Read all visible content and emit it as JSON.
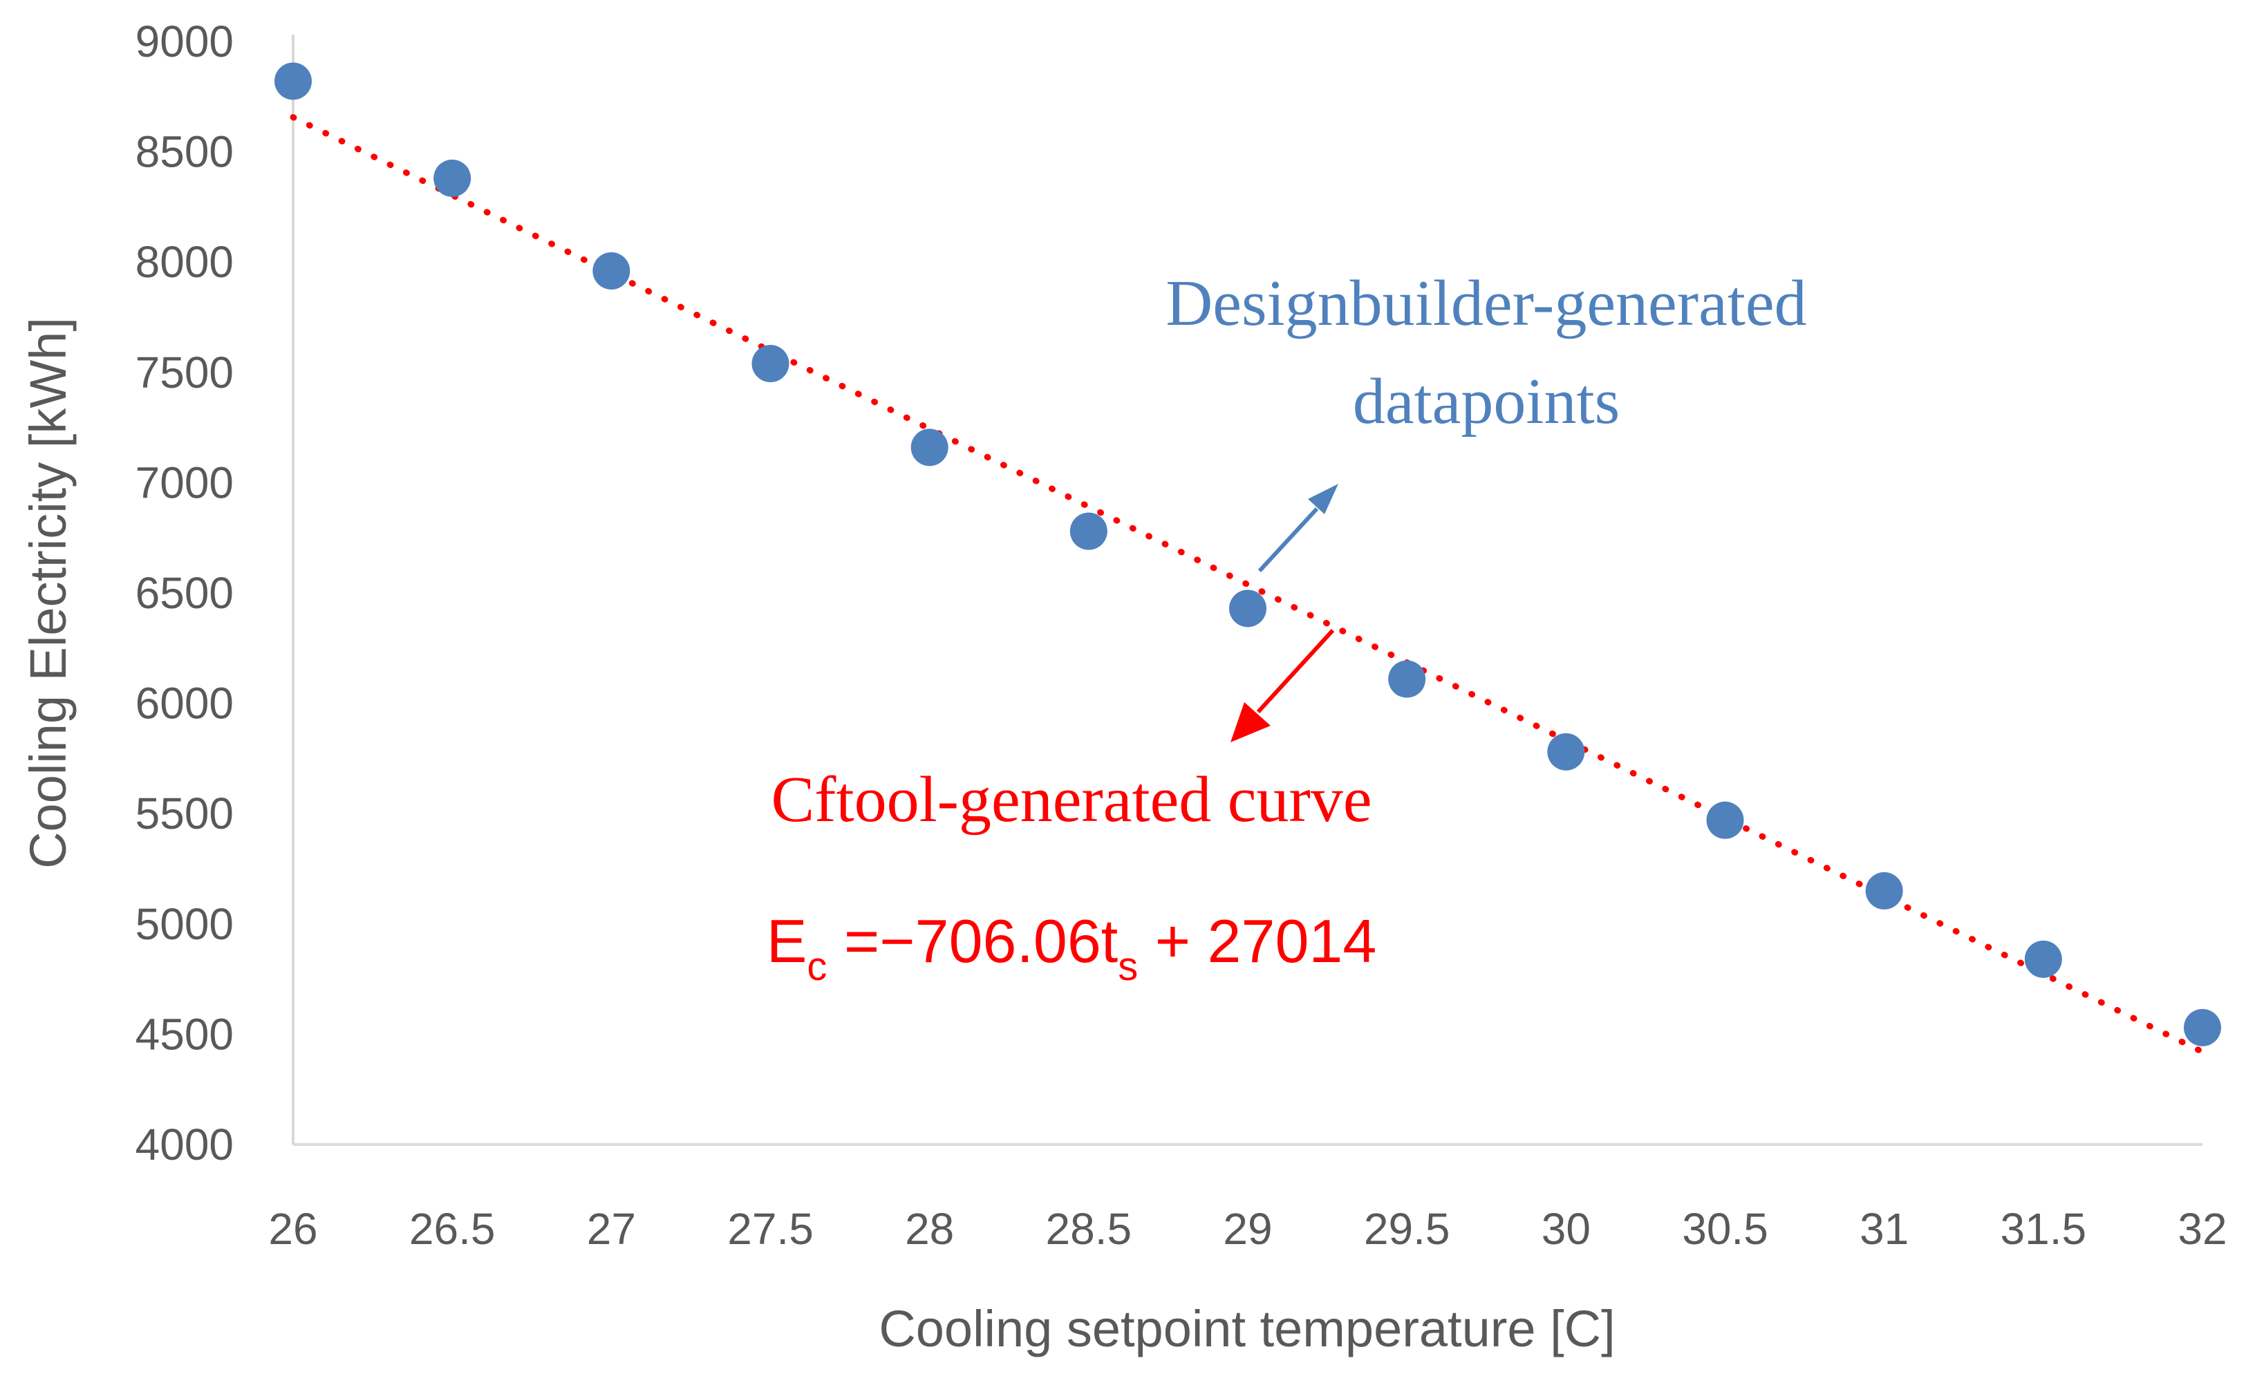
{
  "chart_data": {
    "type": "scatter",
    "title": "",
    "xlabel": "Cooling setpoint temperature [C]",
    "ylabel": "Cooling Electricity [kWh]",
    "xlim": [
      26,
      32
    ],
    "ylim": [
      4000,
      9000
    ],
    "x_ticks": [
      "26",
      "26.5",
      "27",
      "27.5",
      "28",
      "28.5",
      "29",
      "29.5",
      "30",
      "30.5",
      "31",
      "31.5",
      "32"
    ],
    "y_ticks": [
      "4000",
      "4500",
      "5000",
      "5500",
      "6000",
      "6500",
      "7000",
      "7500",
      "8000",
      "8500",
      "9000"
    ],
    "grid": false,
    "legend": "none",
    "series": [
      {
        "type": "scatter",
        "color": "#4f81bd",
        "x": [
          26,
          26.5,
          27,
          27.5,
          28,
          28.5,
          29,
          29.5,
          30,
          30.5,
          31,
          31.5,
          32
        ],
        "y": [
          8820,
          8380,
          7960,
          7540,
          7160,
          6780,
          6430,
          6110,
          5780,
          5470,
          5150,
          4840,
          4530
        ]
      },
      {
        "type": "line",
        "style": "dotted",
        "color": "#ff0000",
        "slope": -706.06,
        "intercept": 27014
      }
    ],
    "annotations": {
      "datapoints_label_line1": "Designbuilder-generated",
      "datapoints_label_line2": "datapoints",
      "datapoints_color": "#4f81bd",
      "curve_label": "Cftool-generated curve",
      "curve_color": "#ff0000",
      "equation_E": "E",
      "equation_E_sub": "c",
      "equation_mid": " =−706.06t",
      "equation_t_sub": "s",
      "equation_tail": " + 27014"
    }
  }
}
